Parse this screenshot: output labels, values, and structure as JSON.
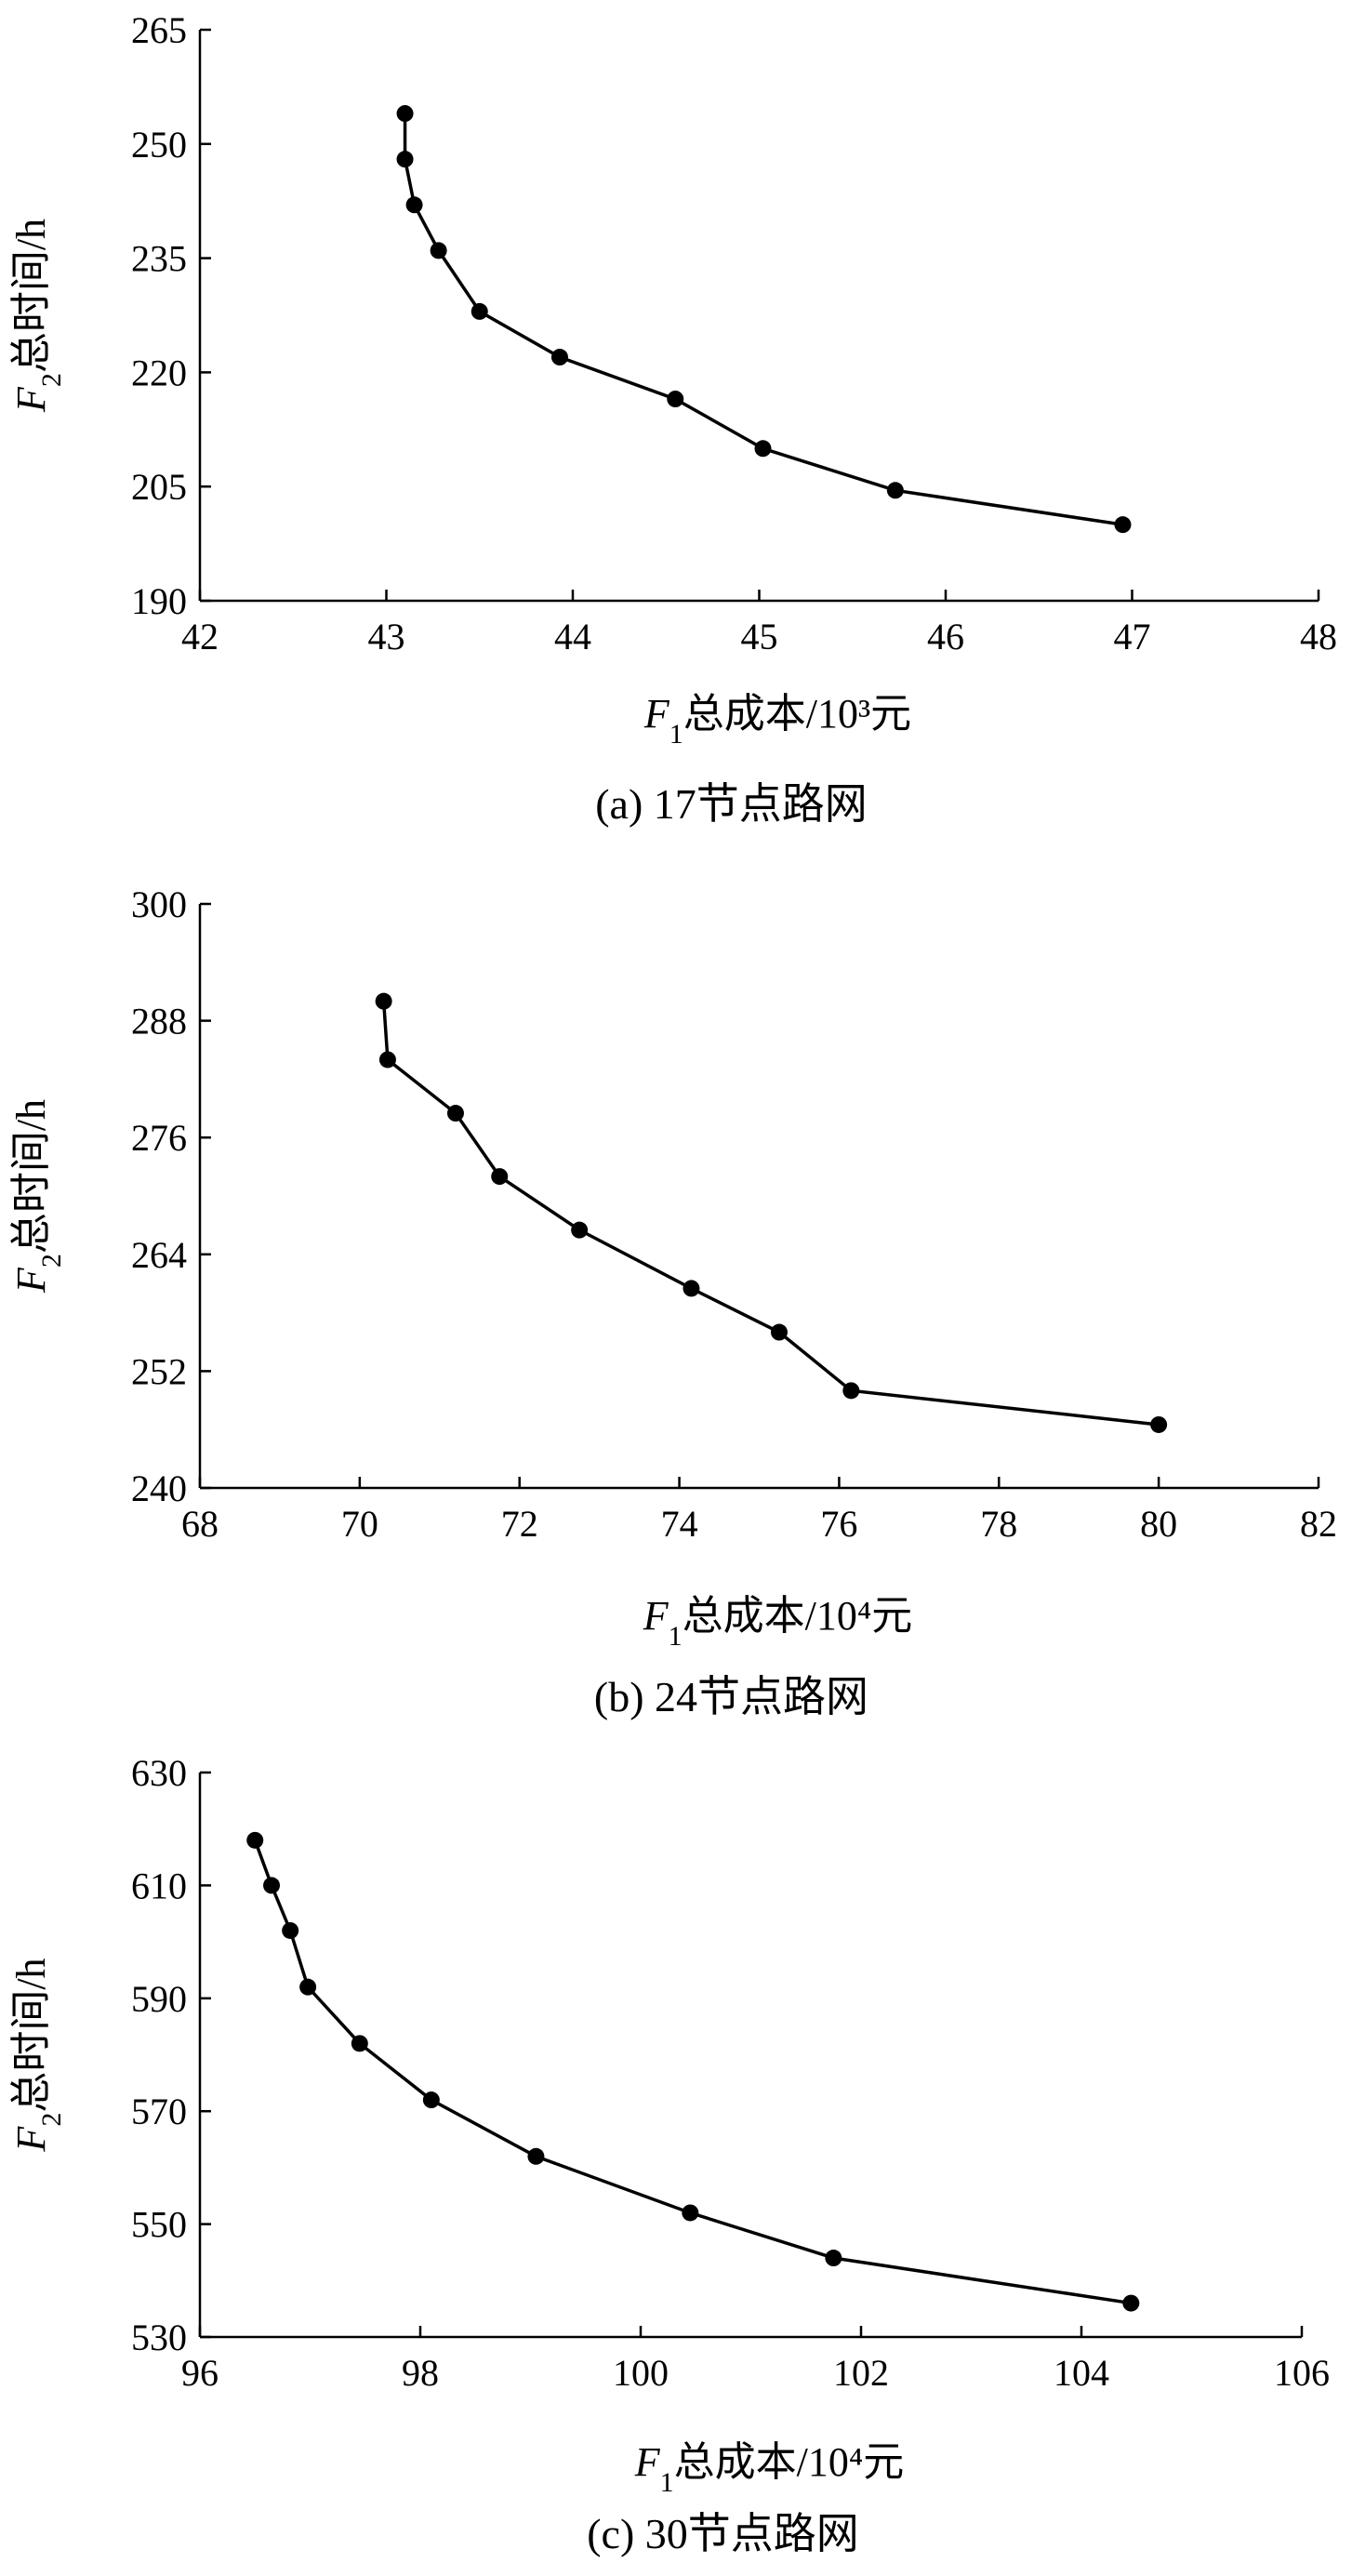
{
  "chart_data": [
    {
      "type": "line",
      "caption": "(a) 17节点路网",
      "xlabel": {
        "italic": "F",
        "sub": "1",
        "rest": "总成本/10³元"
      },
      "ylabel": {
        "italic": "F",
        "sub": "2",
        "rest": "总时间/h"
      },
      "xlim": [
        42,
        48
      ],
      "ylim": [
        190,
        265
      ],
      "xticks": [
        42,
        43,
        44,
        45,
        46,
        47,
        48
      ],
      "yticks": [
        190,
        205,
        220,
        235,
        250,
        265
      ],
      "series": [
        {
          "x": [
            43.1,
            43.1,
            43.15,
            43.28,
            43.5,
            43.93,
            44.55,
            45.02,
            45.73,
            46.95
          ],
          "y": [
            254,
            248,
            242,
            236,
            228,
            222,
            216.5,
            210,
            204.5,
            200
          ]
        }
      ]
    },
    {
      "type": "line",
      "caption": "(b) 24节点路网",
      "xlabel": {
        "italic": "F",
        "sub": "1",
        "rest": "总成本/10⁴元"
      },
      "ylabel": {
        "italic": "F",
        "sub": "2",
        "rest": "总时间/h"
      },
      "xlim": [
        68,
        82
      ],
      "ylim": [
        240,
        300
      ],
      "xticks": [
        68,
        70,
        72,
        74,
        76,
        78,
        80,
        82
      ],
      "yticks": [
        240,
        252,
        264,
        276,
        288,
        300
      ],
      "series": [
        {
          "x": [
            70.3,
            70.35,
            71.2,
            71.75,
            72.75,
            74.15,
            75.25,
            76.15,
            80.0
          ],
          "y": [
            290,
            284,
            278.5,
            272,
            266.5,
            260.5,
            256,
            250,
            246.5
          ]
        }
      ]
    },
    {
      "type": "line",
      "caption": "(c) 30节点路网",
      "xlabel": {
        "italic": "F",
        "sub": "1",
        "rest": "总成本/10⁴元"
      },
      "ylabel": {
        "italic": "F",
        "sub": "2",
        "rest": "总时间/h"
      },
      "xlim": [
        96,
        106
      ],
      "ylim": [
        530,
        630
      ],
      "xticks": [
        96,
        98,
        100,
        102,
        104,
        106
      ],
      "yticks": [
        530,
        550,
        570,
        590,
        610,
        630
      ],
      "series": [
        {
          "x": [
            96.5,
            96.65,
            96.82,
            96.98,
            97.45,
            98.1,
            99.05,
            100.45,
            101.75,
            104.45
          ],
          "y": [
            618,
            610,
            602,
            592,
            582,
            572,
            562,
            552,
            544,
            536
          ]
        }
      ]
    }
  ]
}
